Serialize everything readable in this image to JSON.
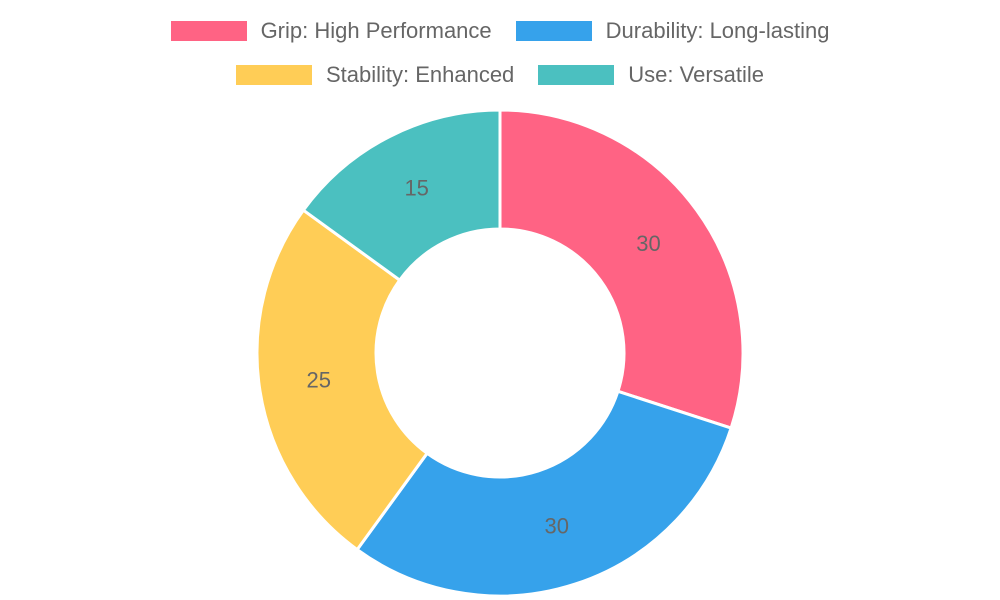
{
  "chart_data": {
    "type": "doughnut",
    "categories": [
      "Grip: High Performance",
      "Durability: Long-lasting",
      "Stability: Enhanced",
      "Use: Versatile"
    ],
    "values": [
      30,
      30,
      25,
      15
    ],
    "colors": [
      "#ff6384",
      "#36a2eb",
      "#ffcd56",
      "#4bc0c0"
    ],
    "legend": "top"
  }
}
